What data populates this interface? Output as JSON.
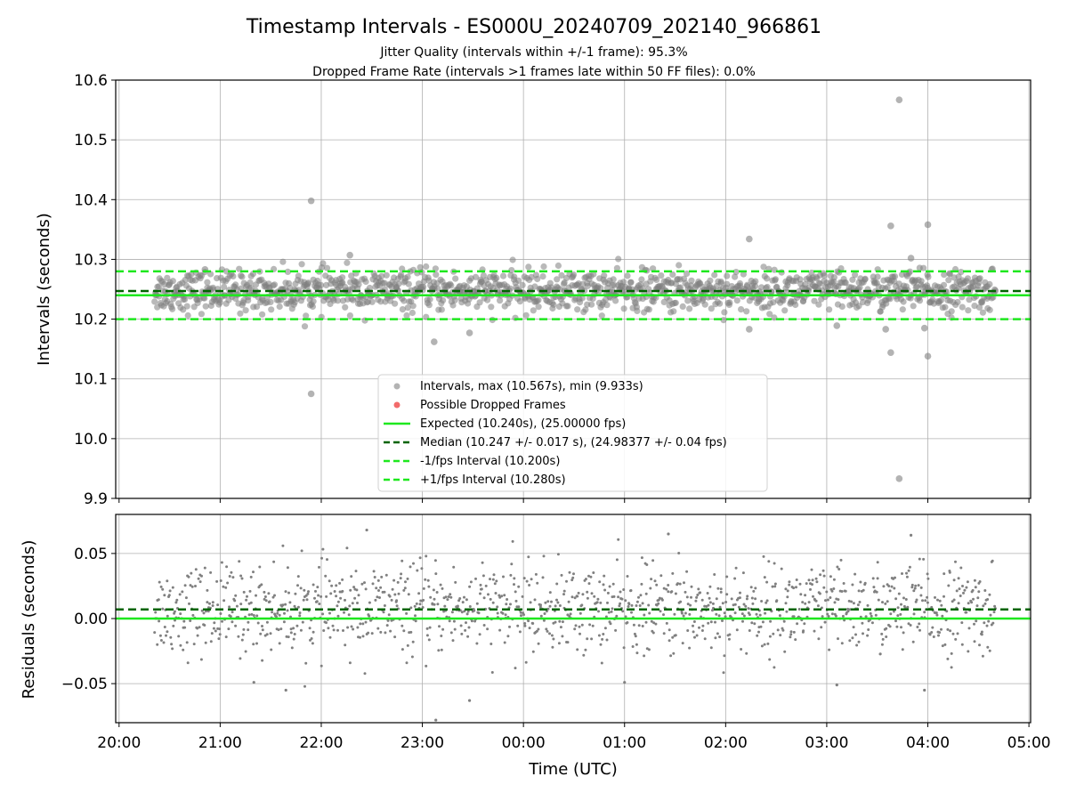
{
  "chart_data": [
    {
      "type": "scatter",
      "title": "Timestamp Intervals - ES000U_20240709_202140_966861",
      "subtitle_lines": [
        "Jitter Quality (intervals within +/-1 frame): 95.3%",
        "Dropped Frame Rate (intervals >1 frames late within 50 FF files): 0.0%"
      ],
      "ylabel": "Intervals (seconds)",
      "ylim": [
        9.9,
        10.6
      ],
      "yticks": [
        "10.6",
        "10.5",
        "10.4",
        "10.3",
        "10.2",
        "10.1",
        "10.0",
        "9.9"
      ],
      "ytick_values": [
        10.6,
        10.5,
        10.4,
        10.3,
        10.2,
        10.1,
        10.0,
        9.9
      ],
      "grid": true,
      "legend_position": "lower-center",
      "legend": [
        "Intervals, max (10.567s), min (9.933s)",
        "Possible Dropped Frames",
        "Expected (10.240s), (25.00000 fps)",
        "Median (10.247 +/- 0.017 s), (24.98377 +/- 0.04 fps)",
        "-1/fps Interval (10.200s)",
        "+1/fps Interval (10.280s)"
      ],
      "reference_lines": {
        "expected": 10.24,
        "median": 10.247,
        "minus_one": 10.2,
        "plus_one": 10.28
      },
      "series_band": {
        "time_start": "20:21",
        "time_end": "04:40",
        "center": 10.247,
        "spread": 0.017
      },
      "outliers": [
        {
          "t": "21:54",
          "y": 10.398
        },
        {
          "t": "21:54",
          "y": 10.075
        },
        {
          "t": "23:07",
          "y": 10.162
        },
        {
          "t": "23:28",
          "y": 10.177
        },
        {
          "t": "02:14",
          "y": 10.334
        },
        {
          "t": "02:14",
          "y": 10.183
        },
        {
          "t": "03:06",
          "y": 10.189
        },
        {
          "t": "03:35",
          "y": 10.183
        },
        {
          "t": "03:38",
          "y": 10.356
        },
        {
          "t": "03:38",
          "y": 10.144
        },
        {
          "t": "03:43",
          "y": 10.567
        },
        {
          "t": "03:43",
          "y": 9.933
        },
        {
          "t": "03:58",
          "y": 10.185
        },
        {
          "t": "04:00",
          "y": 10.358
        },
        {
          "t": "04:00",
          "y": 10.138
        },
        {
          "t": "03:50",
          "y": 10.302
        },
        {
          "t": "22:17",
          "y": 10.307
        },
        {
          "t": "20:51",
          "y": 10.283
        }
      ],
      "colors": {
        "points": "#808080",
        "dropped": "#f26b6b",
        "expected": "#1ee81e",
        "median": "#006400",
        "interval": "#1ee81e"
      }
    },
    {
      "type": "scatter",
      "ylabel": "Residuals (seconds)",
      "xlabel": "Time (UTC)",
      "ylim": [
        -0.08,
        0.08
      ],
      "yticks": [
        "0.05",
        "0.00",
        "−0.05"
      ],
      "ytick_values": [
        0.05,
        0.0,
        -0.05
      ],
      "xlim": [
        "20:00",
        "05:00"
      ],
      "xticks": [
        "20:00",
        "21:00",
        "22:00",
        "23:00",
        "00:00",
        "01:00",
        "02:00",
        "03:00",
        "04:00",
        "05:00"
      ],
      "grid": true,
      "reference_lines": {
        "zero": 0.0,
        "median_offset": 0.007
      },
      "outliers": [
        {
          "t": "22:27",
          "y": 0.068
        },
        {
          "t": "23:08",
          "y": -0.078
        },
        {
          "t": "23:28",
          "y": -0.063
        },
        {
          "t": "01:00",
          "y": -0.049
        },
        {
          "t": "03:06",
          "y": -0.051
        },
        {
          "t": "03:50",
          "y": 0.064
        },
        {
          "t": "03:58",
          "y": -0.055
        },
        {
          "t": "01:26",
          "y": 0.065
        },
        {
          "t": "21:20",
          "y": -0.049
        },
        {
          "t": "21:39",
          "y": -0.055
        }
      ],
      "colors": {
        "points": "#808080",
        "zero": "#1ee81e",
        "median": "#006400"
      }
    }
  ]
}
